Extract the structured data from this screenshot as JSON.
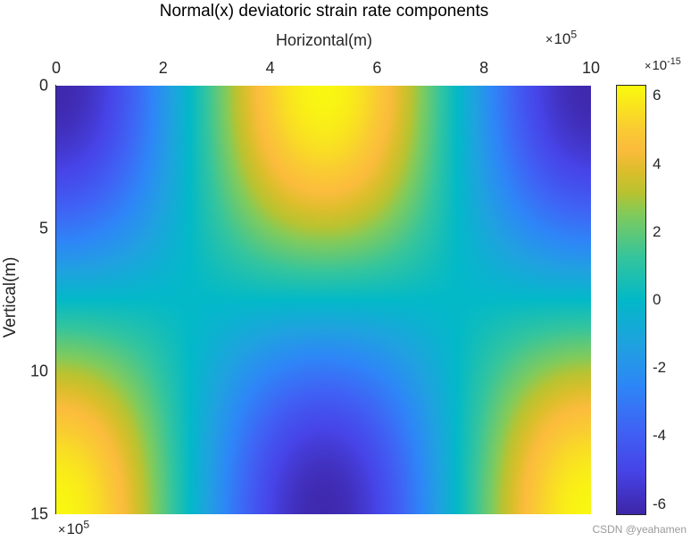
{
  "chart_data": {
    "type": "heatmap",
    "title": "Normal(x) deviatoric strain rate components",
    "xlabel": "Horizontal(m)",
    "ylabel": "Vertical(m)",
    "x_exponent": "10",
    "x_exponent_power": "5",
    "y_exponent": "10",
    "y_exponent_power": "5",
    "colorbar_exponent": "10",
    "colorbar_exponent_power": "-15",
    "xlim": [
      0,
      10
    ],
    "ylim": [
      0,
      15
    ],
    "y_direction": "reverse",
    "x_axis_location": "top",
    "xticks": [
      0,
      2,
      4,
      6,
      8,
      10
    ],
    "yticks": [
      0,
      5,
      10,
      15
    ],
    "colorbar_ticks": [
      6,
      4,
      2,
      0,
      -2,
      -4,
      -6
    ],
    "clim": [
      -6.3,
      6.3
    ],
    "colormap": "parula",
    "field_description": "value ≈ -6.2·cos(2π·x/10)·cos(π·y/15) ×1e-15; positive (yellow) at top-center and bottom corners, negative (purple) at top corners and bottom-center",
    "field_amplitude": 6.2,
    "sample_values": [
      {
        "x": 0,
        "y": 0,
        "value": -6.2
      },
      {
        "x": 5,
        "y": 0,
        "value": 6.2
      },
      {
        "x": 10,
        "y": 0,
        "value": -6.2
      },
      {
        "x": 0,
        "y": 15,
        "value": 6.2
      },
      {
        "x": 5,
        "y": 15,
        "value": -6.2
      },
      {
        "x": 10,
        "y": 15,
        "value": 6.2
      },
      {
        "x": 2.5,
        "y": 7.5,
        "value": 0
      },
      {
        "x": 5,
        "y": 7.5,
        "value": 0
      }
    ],
    "grid": false,
    "legend": "colorbar right"
  },
  "colormap_stops": [
    [
      0.0,
      "#3e26a8"
    ],
    [
      0.1,
      "#4744e8"
    ],
    [
      0.2,
      "#3f64f5"
    ],
    [
      0.3,
      "#2e87f7"
    ],
    [
      0.4,
      "#1fa3df"
    ],
    [
      0.5,
      "#03b9c8"
    ],
    [
      0.6,
      "#35c59d"
    ],
    [
      0.7,
      "#81cb5c"
    ],
    [
      0.75,
      "#b9c331"
    ],
    [
      0.8,
      "#dcbe2b"
    ],
    [
      0.85,
      "#fcbc3d"
    ],
    [
      0.9,
      "#f9cc32"
    ],
    [
      1.0,
      "#f9fb0e"
    ]
  ],
  "watermark": "CSDN @yeahamen"
}
